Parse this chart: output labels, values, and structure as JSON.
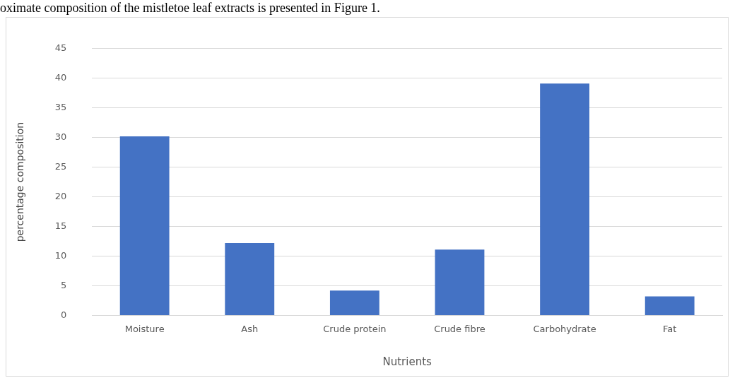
{
  "chart_data": {
    "type": "bar",
    "xlabel": "Nutrients",
    "ylabel": "percentage composition",
    "annotations": [
      "oximate composition of the mistletoe leaf extracts is presented in Figure 1."
    ],
    "categories": [
      "Moisture",
      "Ash",
      "Crude protein",
      "Crude fibre",
      "Carbohydrate",
      "Fat"
    ],
    "values": [
      30.2,
      12.2,
      4.2,
      11.1,
      39.1,
      3.2
    ],
    "color": "#4472c4",
    "ylim": [
      0,
      45
    ],
    "yticks": [
      0,
      5,
      10,
      15,
      20,
      25,
      30,
      35,
      40,
      45
    ],
    "grid": "y",
    "legend": false
  }
}
